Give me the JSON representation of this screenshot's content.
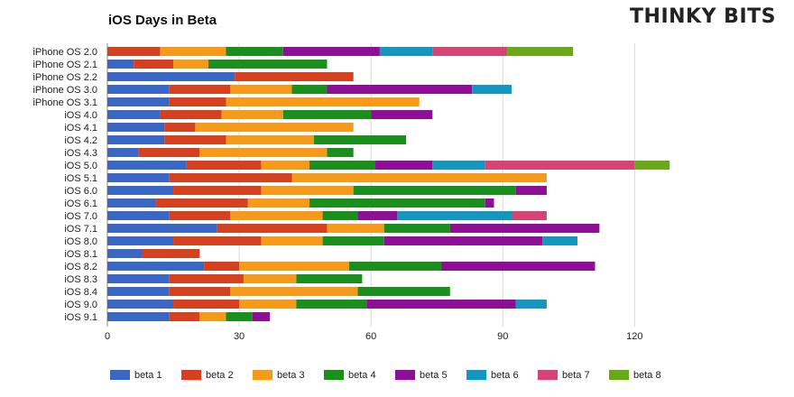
{
  "title": "iOS Days in Beta",
  "brand": "THINKY BITS",
  "colors": {
    "beta 1": "#3B67C4",
    "beta 2": "#D5401E",
    "beta 3": "#F59A1B",
    "beta 4": "#1B8F1E",
    "beta 5": "#8D0F96",
    "beta 6": "#1596BE",
    "beta 7": "#D64473",
    "beta 8": "#69A81B",
    "grid": "#d8d8d8",
    "axis": "#888888"
  },
  "chart_data": {
    "type": "bar",
    "orientation": "horizontal",
    "stacked": true,
    "categories": [
      "iPhone OS 2.0",
      "iPhone OS 2.1",
      "iPhone OS 2.2",
      "iPhone OS 3.0",
      "iPhone OS 3.1",
      "iOS 4.0",
      "iOS 4.1",
      "iOS 4.2",
      "iOS 4.3",
      "iOS 5.0",
      "iOS 5.1",
      "iOS 6.0",
      "iOS 6.1",
      "iOS 7.0",
      "iOS 7.1",
      "iOS 8.0",
      "iOS 8.1",
      "iOS 8.2",
      "iOS 8.3",
      "iOS 8.4",
      "iOS 9.0",
      "iOS 9.1"
    ],
    "series": [
      {
        "name": "beta 1",
        "values": [
          0,
          6,
          29,
          14,
          14,
          12,
          13,
          13,
          7,
          18,
          14,
          15,
          11,
          14,
          25,
          15,
          8,
          22,
          14,
          14,
          15,
          14
        ]
      },
      {
        "name": "beta 2",
        "values": [
          12,
          9,
          27,
          14,
          13,
          14,
          7,
          14,
          14,
          17,
          28,
          20,
          21,
          14,
          25,
          20,
          13,
          8,
          17,
          14,
          15,
          7
        ]
      },
      {
        "name": "beta 3",
        "values": [
          15,
          8,
          0,
          14,
          44,
          14,
          36,
          20,
          29,
          11,
          58,
          21,
          14,
          21,
          13,
          14,
          0,
          25,
          12,
          29,
          13,
          6
        ]
      },
      {
        "name": "beta 4",
        "values": [
          13,
          27,
          0,
          8,
          0,
          20,
          0,
          21,
          6,
          15,
          0,
          37,
          40,
          8,
          15,
          14,
          0,
          21,
          15,
          21,
          16,
          6
        ]
      },
      {
        "name": "beta 5",
        "values": [
          22,
          0,
          0,
          33,
          0,
          14,
          0,
          0,
          0,
          13,
          0,
          7,
          2,
          9,
          34,
          36,
          0,
          35,
          0,
          0,
          34,
          4
        ]
      },
      {
        "name": "beta 6",
        "values": [
          12,
          0,
          0,
          9,
          0,
          0,
          0,
          0,
          0,
          12,
          0,
          0,
          0,
          26,
          0,
          8,
          0,
          0,
          0,
          0,
          7,
          0
        ]
      },
      {
        "name": "beta 7",
        "values": [
          17,
          0,
          0,
          0,
          0,
          0,
          0,
          0,
          0,
          34,
          0,
          0,
          0,
          8,
          0,
          0,
          0,
          0,
          0,
          0,
          0,
          0
        ]
      },
      {
        "name": "beta 8",
        "values": [
          15,
          0,
          0,
          0,
          0,
          0,
          0,
          0,
          0,
          8,
          0,
          0,
          0,
          0,
          0,
          0,
          0,
          0,
          0,
          0,
          0,
          0
        ]
      }
    ],
    "xlim": [
      0,
      130
    ],
    "xticks": [
      0,
      30,
      60,
      90,
      120
    ],
    "grid": true,
    "legend": "bottom"
  }
}
